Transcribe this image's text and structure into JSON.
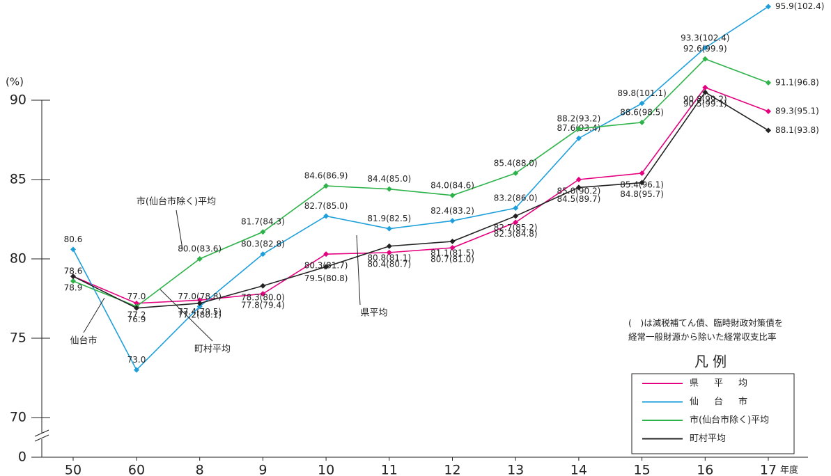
{
  "chart_data": {
    "type": "line",
    "y_unit": "(%)",
    "x_unit": "年度",
    "categories": [
      "50",
      "60",
      "8",
      "9",
      "10",
      "11",
      "12",
      "13",
      "14",
      "15",
      "16",
      "17"
    ],
    "series": [
      {
        "name": "県平均",
        "color": "#e4007f",
        "values": [
          78.9,
          77.2,
          77.4,
          77.8,
          80.3,
          80.4,
          80.7,
          82.3,
          85.0,
          85.4,
          90.8,
          89.3
        ],
        "value_labels": [
          "78.9",
          "77.2",
          "77.4(79.5)",
          "77.8(79.4)",
          "80.3(81.7)",
          "80.4(80.7)",
          "80.7(81.0)",
          "82.3(84.8)",
          "85.0(90.2)",
          "85.4(96.1)",
          "90.8(99.2)",
          "89.3(95.1)"
        ]
      },
      {
        "name": "仙台市",
        "color": "#1e9fdc",
        "values": [
          80.6,
          73.0,
          77.0,
          80.3,
          82.7,
          81.9,
          82.4,
          83.2,
          87.6,
          89.8,
          93.3,
          95.9
        ],
        "value_labels": [
          "80.6",
          "73.0",
          "77.0(78.8)",
          "80.3(82.8)",
          "82.7(85.0)",
          "81.9(82.5)",
          "82.4(83.2)",
          "83.2(86.0)",
          "87.6(93.4)",
          "89.8(101.1)",
          "93.3(102.4)",
          "95.9(102.4)"
        ]
      },
      {
        "name": "市(仙台市除く)平均",
        "color": "#2eb24a",
        "values": [
          78.6,
          77.0,
          80.0,
          81.7,
          84.6,
          84.4,
          84.0,
          85.4,
          88.2,
          88.6,
          92.6,
          91.1
        ],
        "value_labels": [
          "78.6",
          "77.0",
          "80.0(83.6)",
          "81.7(84.3)",
          "84.6(86.9)",
          "84.4(85.0)",
          "84.0(84.6)",
          "85.4(88.0)",
          "88.2(93.2)",
          "88.6(98.5)",
          "92.6(99.9)",
          "91.1(96.8)"
        ]
      },
      {
        "name": "町村平均",
        "color": "#222222",
        "values": [
          78.9,
          76.9,
          77.2,
          78.3,
          79.5,
          80.8,
          81.1,
          82.7,
          84.5,
          84.8,
          90.5,
          88.1
        ],
        "value_labels": [
          null,
          "76.9",
          "77.2(80.1)",
          "78.3(80.0)",
          "79.5(80.8)",
          "80.8(81.1)",
          "81.1(81.5)",
          "82.7(85.2)",
          "84.5(89.7)",
          "84.8(95.7)",
          "90.5(99.1)",
          "88.1(93.8)"
        ]
      }
    ],
    "ylim": [
      0,
      90
    ],
    "yticks": [
      0,
      70,
      75,
      80,
      85,
      90
    ],
    "axis_break": true,
    "legend": {
      "title": "凡 例",
      "position": "lower right"
    },
    "note": [
      "(　)は減税補てん債、臨時財政対策債を",
      "経常一般財源から除いた経常収支比率"
    ],
    "annotations": [
      "市(仙台市除く)平均",
      "仙台市",
      "町村平均",
      "県平均"
    ]
  }
}
